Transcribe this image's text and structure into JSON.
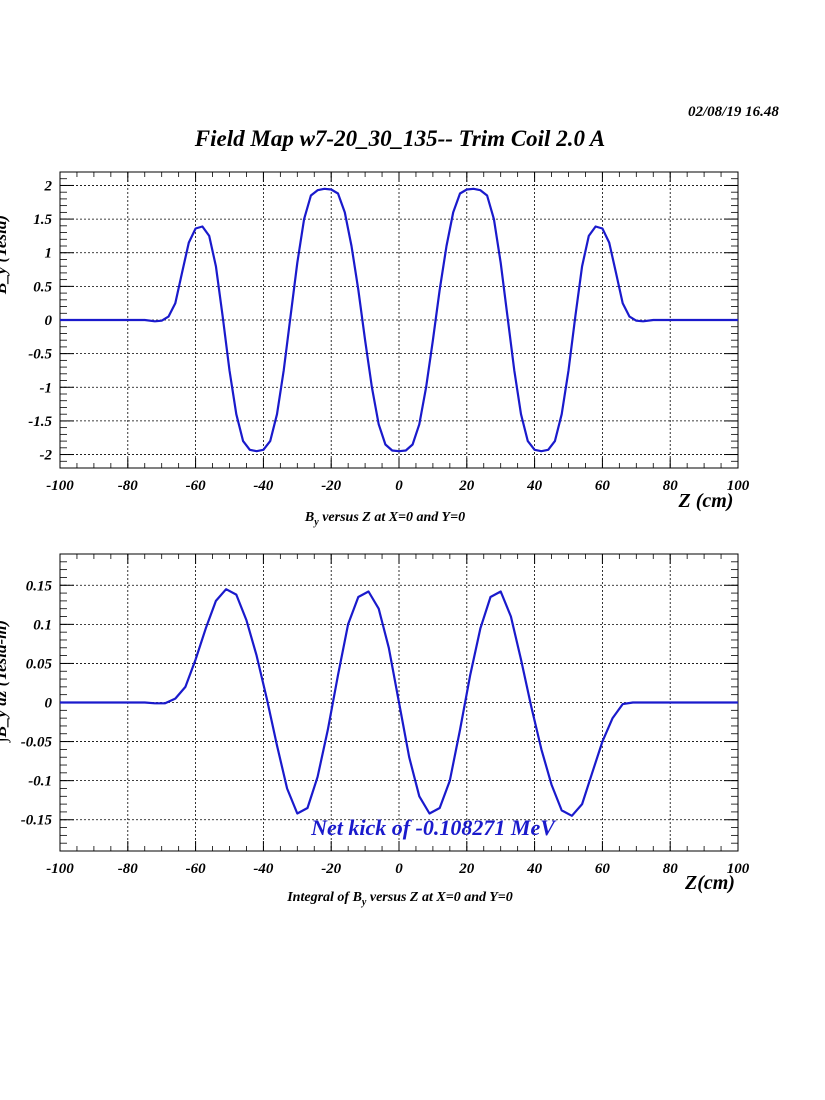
{
  "date_stamp": "02/08/19   16.48",
  "title": "Field Map w7-20_30_135-- Trim Coil 2.0 A",
  "colors": {
    "curve": "#1a1acc",
    "annotation": "#1a1acc",
    "grid": "#000000"
  },
  "chart_data": [
    {
      "type": "line",
      "xlabel": "Z (cm)",
      "ylabel": "B_y (Tesla)",
      "caption": {
        "base": "B",
        "sub": "y",
        "rest": " versus Z at X=0 and Y=0"
      },
      "xlim": [
        -100,
        100
      ],
      "ylim": [
        -2.2,
        2.2
      ],
      "xticks": [
        "-100",
        "-80",
        "-60",
        "-40",
        "-20",
        "0",
        "20",
        "40",
        "60",
        "80",
        "100"
      ],
      "yticks": [
        "2",
        "1.5",
        "1",
        "0.5",
        "0",
        "-0.5",
        "-1",
        "-1.5",
        "-2"
      ],
      "grid": true,
      "series": [
        {
          "x": [
            -100,
            -80,
            -75,
            -72,
            -70,
            -68,
            -66,
            -64,
            -62,
            -60,
            -58,
            -56,
            -54,
            -52,
            -50,
            -48,
            -46,
            -44,
            -42,
            -40,
            -38,
            -36,
            -34,
            -32,
            -30,
            -28,
            -26,
            -24,
            -22,
            -20,
            -18,
            -16,
            -14,
            -12,
            -10,
            -8,
            -6,
            -4,
            -2,
            0,
            2,
            4,
            6,
            8,
            10,
            12,
            14,
            16,
            18,
            20,
            22,
            24,
            26,
            28,
            30,
            32,
            34,
            36,
            38,
            40,
            42,
            44,
            46,
            48,
            50,
            52,
            54,
            56,
            58,
            60,
            62,
            64,
            66,
            68,
            70,
            72,
            75,
            80,
            100
          ],
          "y": [
            0,
            0,
            0,
            -0.02,
            -0.01,
            0.05,
            0.25,
            0.7,
            1.15,
            1.36,
            1.39,
            1.25,
            0.8,
            0.05,
            -0.75,
            -1.4,
            -1.8,
            -1.93,
            -1.95,
            -1.93,
            -1.8,
            -1.4,
            -0.75,
            0.05,
            0.85,
            1.5,
            1.85,
            1.93,
            1.95,
            1.94,
            1.88,
            1.6,
            1.1,
            0.45,
            -0.3,
            -1.0,
            -1.55,
            -1.85,
            -1.94,
            -1.95,
            -1.94,
            -1.85,
            -1.55,
            -1.0,
            -0.3,
            0.45,
            1.1,
            1.6,
            1.88,
            1.94,
            1.95,
            1.93,
            1.85,
            1.5,
            0.85,
            0.05,
            -0.75,
            -1.4,
            -1.8,
            -1.93,
            -1.95,
            -1.93,
            -1.8,
            -1.4,
            -0.75,
            0.05,
            0.8,
            1.25,
            1.39,
            1.36,
            1.15,
            0.7,
            0.25,
            0.05,
            -0.01,
            -0.02,
            0,
            0,
            0
          ]
        }
      ]
    },
    {
      "type": "line",
      "xlabel": "Z(cm)",
      "ylabel": "∫B_y dz (Tesla-m)",
      "caption": {
        "base": "Integral of B",
        "sub": "y",
        "rest": " versus Z at X=0 and Y=0"
      },
      "xlim": [
        -100,
        100
      ],
      "ylim": [
        -0.19,
        0.19
      ],
      "xticks": [
        "-100",
        "-80",
        "-60",
        "-40",
        "-20",
        "0",
        "20",
        "40",
        "60",
        "80",
        "100"
      ],
      "yticks": [
        "0.15",
        "0.1",
        "0.05",
        "0",
        "-0.05",
        "-0.1",
        "-0.15"
      ],
      "grid": true,
      "annotation": "Net kick of -0.108271 MeV",
      "series": [
        {
          "x": [
            -100,
            -75,
            -72,
            -69,
            -66,
            -63,
            -60,
            -57,
            -54,
            -51,
            -48,
            -45,
            -42,
            -39,
            -36,
            -33,
            -30,
            -27,
            -24,
            -21,
            -18,
            -15,
            -12,
            -9,
            -6,
            -3,
            0,
            3,
            6,
            9,
            12,
            15,
            18,
            21,
            24,
            27,
            30,
            33,
            36,
            39,
            42,
            45,
            48,
            51,
            54,
            57,
            60,
            63,
            66,
            69,
            72,
            75,
            100
          ],
          "y": [
            0,
            0,
            -0.001,
            -0.001,
            0.005,
            0.02,
            0.055,
            0.095,
            0.13,
            0.145,
            0.138,
            0.105,
            0.06,
            0.005,
            -0.055,
            -0.11,
            -0.142,
            -0.135,
            -0.095,
            -0.035,
            0.035,
            0.1,
            0.135,
            0.142,
            0.12,
            0.07,
            0.0,
            -0.07,
            -0.12,
            -0.142,
            -0.135,
            -0.1,
            -0.035,
            0.035,
            0.095,
            0.135,
            0.142,
            0.11,
            0.055,
            -0.005,
            -0.06,
            -0.105,
            -0.138,
            -0.145,
            -0.13,
            -0.09,
            -0.05,
            -0.02,
            -0.002,
            0.0,
            0.0,
            0.0,
            0.0
          ]
        }
      ]
    }
  ]
}
